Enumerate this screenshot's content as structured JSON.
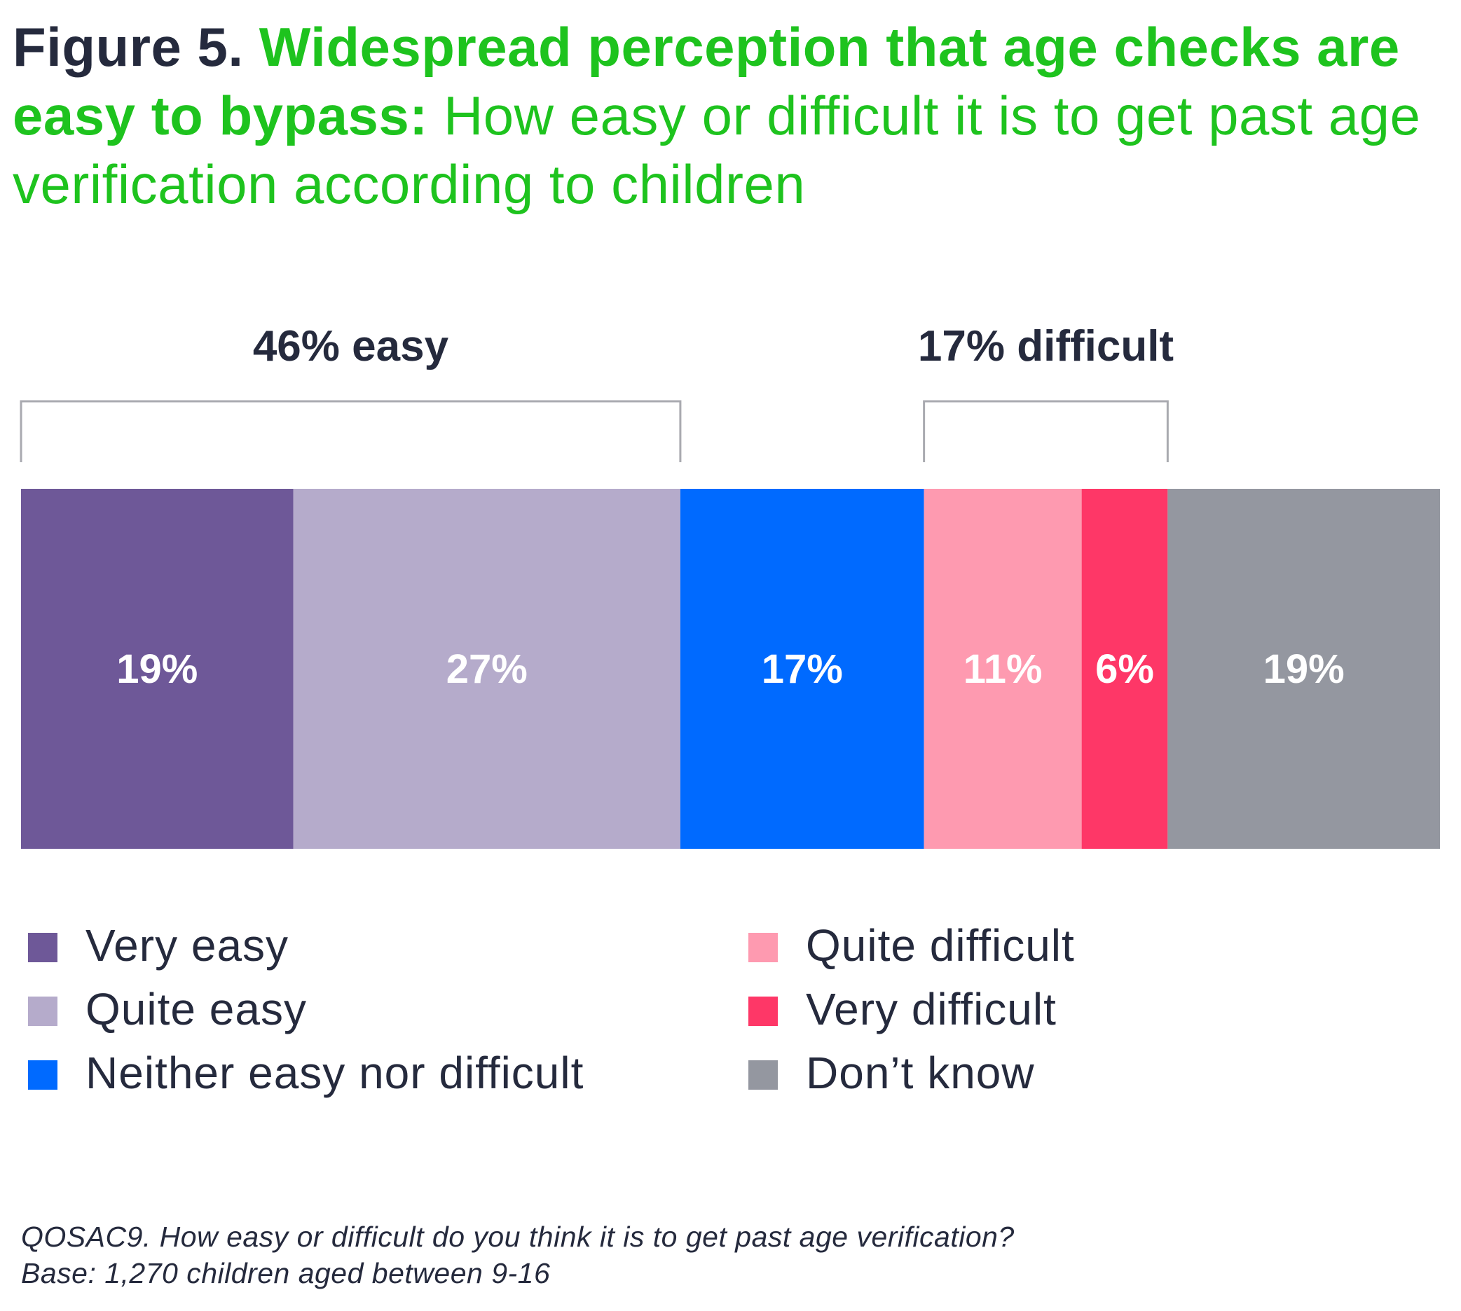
{
  "title": {
    "figure_label": "Figure 5.",
    "headline": "Widespread perception that age checks are easy to bypass:",
    "subtitle": "How easy or difficult it is to get past age verification according to children"
  },
  "chart_data": {
    "type": "bar",
    "orientation": "horizontal-stacked-100",
    "categories": [
      "Very easy",
      "Quite easy",
      "Neither easy nor difficult",
      "Quite difficult",
      "Very difficult",
      "Don’t know"
    ],
    "values": [
      19,
      27,
      17,
      11,
      6,
      19
    ],
    "value_labels": [
      "19%",
      "27%",
      "17%",
      "11%",
      "6%",
      "19%"
    ],
    "colors": [
      "#6e5898",
      "#b5abcb",
      "#006aff",
      "#fe9ab0",
      "#fe3767",
      "#9497a0"
    ],
    "groups": [
      {
        "label": "46% easy",
        "from": 0,
        "to": 1
      },
      {
        "label": "17% difficult",
        "from": 3,
        "to": 4
      }
    ],
    "legend_position": "bottom"
  },
  "legend": {
    "left_column": [
      {
        "label": "Very easy",
        "color": "#6e5898"
      },
      {
        "label": "Quite easy",
        "color": "#b5abcb"
      },
      {
        "label": "Neither easy nor difficult",
        "color": "#006aff"
      }
    ],
    "right_column": [
      {
        "label": "Quite difficult",
        "color": "#fe9ab0"
      },
      {
        "label": "Very difficult",
        "color": "#fe3767"
      },
      {
        "label": "Don’t know",
        "color": "#9497a0"
      }
    ]
  },
  "footnote": {
    "question": "QOSAC9. How easy or difficult do you think it is to get past age verification?",
    "base": "Base: 1,270 children aged between 9-16"
  }
}
